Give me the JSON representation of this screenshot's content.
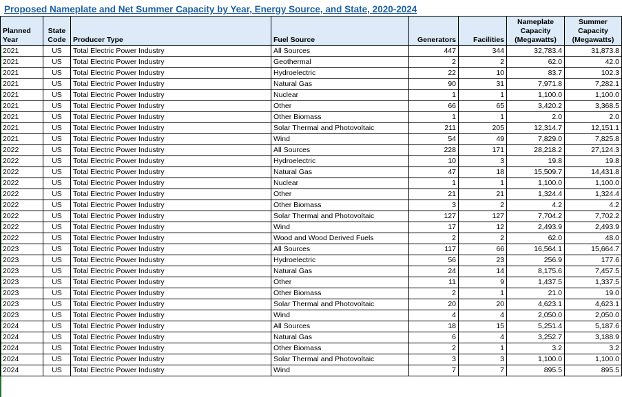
{
  "title": "Proposed Nameplate and Net Summer Capacity by Year, Energy Source, and State, 2020-2024",
  "headers": {
    "year": "Planned Year",
    "state": "State Code",
    "producer": "Producer Type",
    "fuel": "Fuel Source",
    "generators": "Generators",
    "facilities": "Facilities",
    "nameplate": "Nameplate Capacity (Megawatts)",
    "summer": "Summer Capacity (Megawatts)"
  },
  "rows": [
    [
      "2021",
      "US",
      "Total Electric Power Industry",
      "All Sources",
      "447",
      "344",
      "32,783.4",
      "31,873.8"
    ],
    [
      "2021",
      "US",
      "Total Electric Power Industry",
      "Geothermal",
      "2",
      "2",
      "62.0",
      "42.0"
    ],
    [
      "2021",
      "US",
      "Total Electric Power Industry",
      "Hydroelectric",
      "22",
      "10",
      "83.7",
      "102.3"
    ],
    [
      "2021",
      "US",
      "Total Electric Power Industry",
      "Natural Gas",
      "90",
      "31",
      "7,971.8",
      "7,282.1"
    ],
    [
      "2021",
      "US",
      "Total Electric Power Industry",
      "Nuclear",
      "1",
      "1",
      "1,100.0",
      "1,100.0"
    ],
    [
      "2021",
      "US",
      "Total Electric Power Industry",
      "Other",
      "66",
      "65",
      "3,420.2",
      "3,368.5"
    ],
    [
      "2021",
      "US",
      "Total Electric Power Industry",
      "Other Biomass",
      "1",
      "1",
      "2.0",
      "2.0"
    ],
    [
      "2021",
      "US",
      "Total Electric Power Industry",
      "Solar Thermal and Photovoltaic",
      "211",
      "205",
      "12,314.7",
      "12,151.1"
    ],
    [
      "2021",
      "US",
      "Total Electric Power Industry",
      "Wind",
      "54",
      "49",
      "7,829.0",
      "7,825.8"
    ],
    [
      "2022",
      "US",
      "Total Electric Power Industry",
      "All Sources",
      "228",
      "171",
      "28,218.2",
      "27,124.3"
    ],
    [
      "2022",
      "US",
      "Total Electric Power Industry",
      "Hydroelectric",
      "10",
      "3",
      "19.8",
      "19.8"
    ],
    [
      "2022",
      "US",
      "Total Electric Power Industry",
      "Natural Gas",
      "47",
      "18",
      "15,509.7",
      "14,431.8"
    ],
    [
      "2022",
      "US",
      "Total Electric Power Industry",
      "Nuclear",
      "1",
      "1",
      "1,100.0",
      "1,100.0"
    ],
    [
      "2022",
      "US",
      "Total Electric Power Industry",
      "Other",
      "21",
      "21",
      "1,324.4",
      "1,324.4"
    ],
    [
      "2022",
      "US",
      "Total Electric Power Industry",
      "Other Biomass",
      "3",
      "2",
      "4.2",
      "4.2"
    ],
    [
      "2022",
      "US",
      "Total Electric Power Industry",
      "Solar Thermal and Photovoltaic",
      "127",
      "127",
      "7,704.2",
      "7,702.2"
    ],
    [
      "2022",
      "US",
      "Total Electric Power Industry",
      "Wind",
      "17",
      "12",
      "2,493.9",
      "2,493.9"
    ],
    [
      "2022",
      "US",
      "Total Electric Power Industry",
      "Wood and Wood Derived Fuels",
      "2",
      "2",
      "62.0",
      "48.0"
    ],
    [
      "2023",
      "US",
      "Total Electric Power Industry",
      "All Sources",
      "117",
      "66",
      "16,564.1",
      "15,664.7"
    ],
    [
      "2023",
      "US",
      "Total Electric Power Industry",
      "Hydroelectric",
      "56",
      "23",
      "256.9",
      "177.6"
    ],
    [
      "2023",
      "US",
      "Total Electric Power Industry",
      "Natural Gas",
      "24",
      "14",
      "8,175.6",
      "7,457.5"
    ],
    [
      "2023",
      "US",
      "Total Electric Power Industry",
      "Other",
      "11",
      "9",
      "1,437.5",
      "1,337.5"
    ],
    [
      "2023",
      "US",
      "Total Electric Power Industry",
      "Other Biomass",
      "2",
      "1",
      "21.0",
      "19.0"
    ],
    [
      "2023",
      "US",
      "Total Electric Power Industry",
      "Solar Thermal and Photovoltaic",
      "20",
      "20",
      "4,623.1",
      "4,623.1"
    ],
    [
      "2023",
      "US",
      "Total Electric Power Industry",
      "Wind",
      "4",
      "4",
      "2,050.0",
      "2,050.0"
    ],
    [
      "2024",
      "US",
      "Total Electric Power Industry",
      "All Sources",
      "18",
      "15",
      "5,251.4",
      "5,187.6"
    ],
    [
      "2024",
      "US",
      "Total Electric Power Industry",
      "Natural Gas",
      "6",
      "4",
      "3,252.7",
      "3,188.9"
    ],
    [
      "2024",
      "US",
      "Total Electric Power Industry",
      "Other Biomass",
      "2",
      "1",
      "3.2",
      "3.2"
    ],
    [
      "2024",
      "US",
      "Total Electric Power Industry",
      "Solar Thermal and Photovoltaic",
      "3",
      "3",
      "1,100.0",
      "1,100.0"
    ],
    [
      "2024",
      "US",
      "Total Electric Power Industry",
      "Wind",
      "7",
      "7",
      "895.5",
      "895.5"
    ]
  ]
}
